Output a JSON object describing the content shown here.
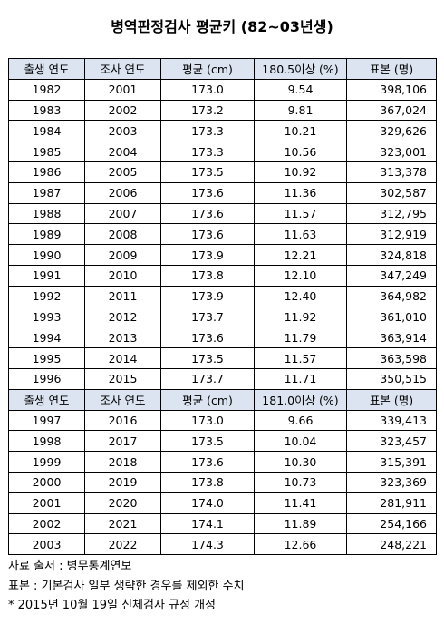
{
  "header": {
    "title": "병역판정검사 평균키 (82~03년생)"
  },
  "table1": {
    "columns": [
      "출생 연도",
      "조사 연도",
      "평균 (cm)",
      "180.5이상 (%)",
      "표본 (명)"
    ],
    "rows": [
      [
        "1982",
        "2001",
        "173.0",
        "9.54",
        "398,106"
      ],
      [
        "1983",
        "2002",
        "173.2",
        "9.81",
        "367,024"
      ],
      [
        "1984",
        "2003",
        "173.3",
        "10.21",
        "329,626"
      ],
      [
        "1985",
        "2004",
        "173.3",
        "10.56",
        "323,001"
      ],
      [
        "1986",
        "2005",
        "173.5",
        "10.92",
        "313,378"
      ],
      [
        "1987",
        "2006",
        "173.6",
        "11.36",
        "302,587"
      ],
      [
        "1988",
        "2007",
        "173.6",
        "11.57",
        "312,795"
      ],
      [
        "1989",
        "2008",
        "173.6",
        "11.63",
        "312,919"
      ],
      [
        "1990",
        "2009",
        "173.9",
        "12.21",
        "324,818"
      ],
      [
        "1991",
        "2010",
        "173.8",
        "12.10",
        "347,249"
      ],
      [
        "1992",
        "2011",
        "173.9",
        "12.40",
        "364,982"
      ],
      [
        "1993",
        "2012",
        "173.7",
        "11.92",
        "361,010"
      ],
      [
        "1994",
        "2013",
        "173.6",
        "11.79",
        "363,914"
      ],
      [
        "1995",
        "2014",
        "173.5",
        "11.57",
        "363,598"
      ],
      [
        "1996",
        "2015",
        "173.7",
        "11.71",
        "350,515"
      ]
    ]
  },
  "table2": {
    "columns": [
      "출생 연도",
      "조사 연도",
      "평균 (cm)",
      "181.0이상 (%)",
      "표본 (명)"
    ],
    "rows": [
      [
        "1997",
        "2016",
        "173.0",
        "9.66",
        "339,413"
      ],
      [
        "1998",
        "2017",
        "173.5",
        "10.04",
        "323,457"
      ],
      [
        "1999",
        "2018",
        "173.6",
        "10.30",
        "315,391"
      ],
      [
        "2000",
        "2019",
        "173.8",
        "10.73",
        "323,369"
      ],
      [
        "2001",
        "2020",
        "174.0",
        "11.41",
        "281,911"
      ],
      [
        "2002",
        "2021",
        "174.1",
        "11.89",
        "254,166"
      ],
      [
        "2003",
        "2022",
        "174.3",
        "12.66",
        "248,221"
      ]
    ]
  },
  "notes": [
    "자료 출저 : 병무통계연보",
    "표본 : 기본검사 일부 생략한 경우를 제외한 수치",
    "* 2015년 10월 19일 신체검사 규정 개정"
  ]
}
